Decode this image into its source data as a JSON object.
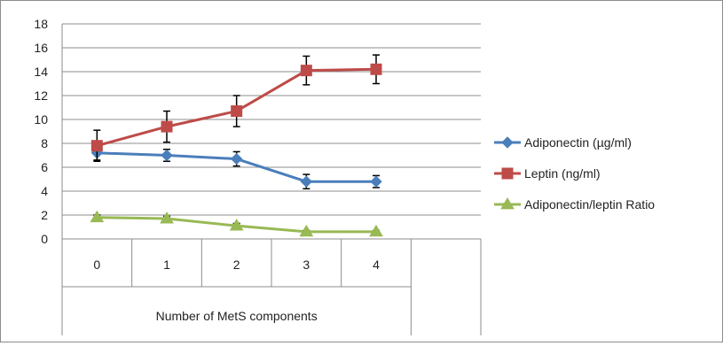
{
  "chart_data": {
    "type": "line",
    "xlabel": "Number of MetS components",
    "ylabel": "",
    "categories": [
      "0",
      "1",
      "2",
      "3",
      "4"
    ],
    "extra_category_column": true,
    "ylim": [
      0,
      18
    ],
    "yticks": [
      0,
      2,
      4,
      6,
      8,
      10,
      12,
      14,
      16,
      18
    ],
    "grid": "horizontal",
    "legend_position": "right",
    "series": [
      {
        "name": "Adiponectin (µg/ml)",
        "color": "#4A7EBB",
        "marker": "diamond",
        "values": [
          7.2,
          7.0,
          6.7,
          4.8,
          4.8
        ],
        "error": [
          0.6,
          0.5,
          0.6,
          0.6,
          0.5
        ]
      },
      {
        "name": "Leptin (ng/ml)",
        "color": "#BE4B48",
        "marker": "square",
        "values": [
          7.8,
          9.4,
          10.7,
          14.1,
          14.2
        ],
        "error": [
          1.3,
          1.3,
          1.3,
          1.2,
          1.2
        ]
      },
      {
        "name": "Adiponectin/leptin Ratio",
        "color": "#98B954",
        "marker": "triangle",
        "values": [
          1.8,
          1.7,
          1.1,
          0.6,
          0.6
        ],
        "error": [
          0.2,
          0.2,
          0.2,
          0.1,
          0.1
        ]
      }
    ]
  }
}
